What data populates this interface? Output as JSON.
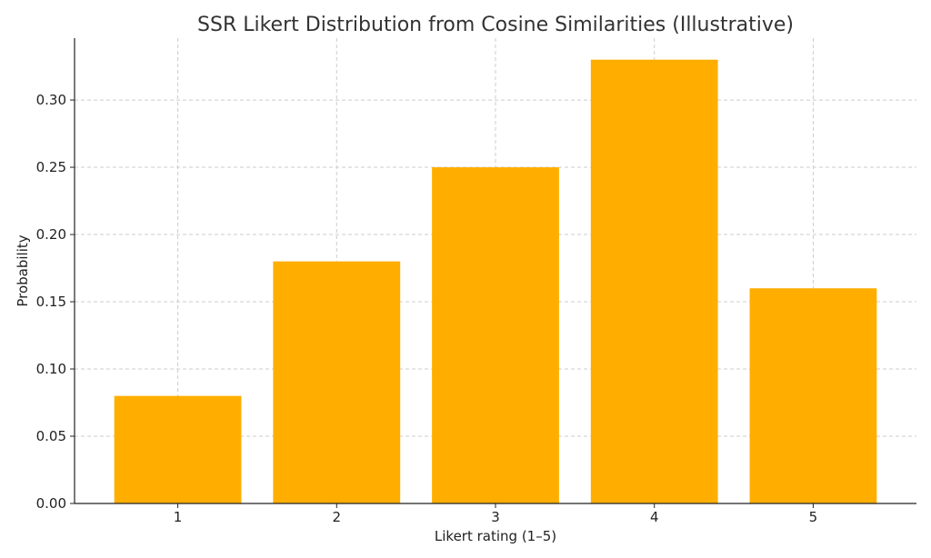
{
  "chart_data": {
    "type": "bar",
    "title": "SSR Likert Distribution from Cosine Similarities (Illustrative)",
    "xlabel": "Likert rating (1–5)",
    "ylabel": "Probability",
    "categories": [
      "1",
      "2",
      "3",
      "4",
      "5"
    ],
    "values": [
      0.08,
      0.18,
      0.25,
      0.33,
      0.16
    ],
    "ylim": [
      0,
      0.346
    ],
    "yticks": [
      "0.00",
      "0.05",
      "0.10",
      "0.15",
      "0.20",
      "0.25",
      "0.30"
    ],
    "bar_color": "#ffae00",
    "grid": true
  }
}
